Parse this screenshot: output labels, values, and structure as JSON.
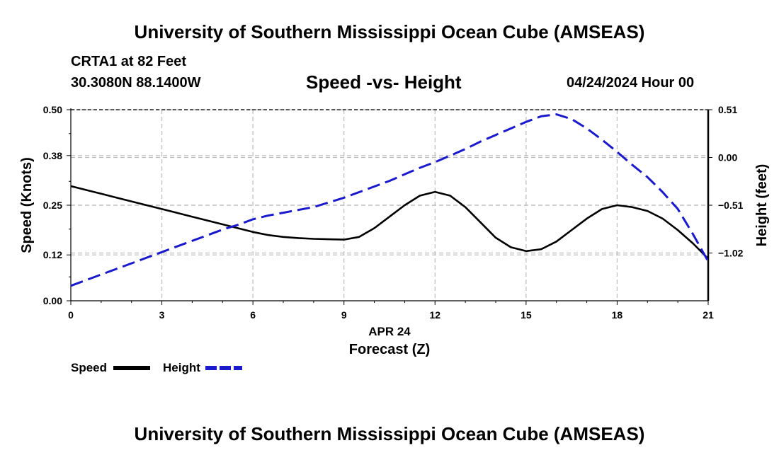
{
  "header": {
    "title": "University of Southern Mississippi Ocean Cube (AMSEAS)",
    "station": "CRTA1 at 82 Feet",
    "coords": "30.3080N  88.1400W",
    "subtitle": "Speed -vs- Height",
    "datetime": "04/24/2024 Hour 00"
  },
  "footer": {
    "title": "University of Southern Mississippi Ocean Cube (AMSEAS)"
  },
  "colors": {
    "speed": "#000000",
    "height": "#1a1acc",
    "grid": "#bbbbbb"
  },
  "chart_data": {
    "type": "line",
    "x": [
      0,
      0.5,
      1,
      1.5,
      2,
      2.5,
      3,
      3.5,
      4,
      4.5,
      5,
      5.5,
      6,
      6.5,
      7,
      7.5,
      8,
      8.5,
      9,
      9.5,
      10,
      10.5,
      11,
      11.5,
      12,
      12.5,
      13,
      13.5,
      14,
      14.5,
      15,
      15.5,
      16,
      16.5,
      17,
      17.5,
      18,
      18.5,
      19,
      19.5,
      20,
      20.5,
      21
    ],
    "series": [
      {
        "name": "Speed",
        "axis": "left",
        "style": "solid",
        "values": [
          0.3,
          0.29,
          0.28,
          0.27,
          0.26,
          0.25,
          0.24,
          0.23,
          0.22,
          0.21,
          0.2,
          0.19,
          0.18,
          0.172,
          0.167,
          0.164,
          0.162,
          0.161,
          0.16,
          0.167,
          0.19,
          0.22,
          0.25,
          0.275,
          0.285,
          0.275,
          0.245,
          0.205,
          0.165,
          0.14,
          0.13,
          0.135,
          0.155,
          0.185,
          0.215,
          0.24,
          0.25,
          0.245,
          0.235,
          0.215,
          0.185,
          0.15,
          0.11
        ]
      },
      {
        "name": "Height",
        "axis": "right",
        "style": "dashed",
        "values": [
          -1.37,
          -1.31,
          -1.25,
          -1.19,
          -1.13,
          -1.07,
          -1.01,
          -0.95,
          -0.89,
          -0.83,
          -0.77,
          -0.72,
          -0.66,
          -0.62,
          -0.59,
          -0.56,
          -0.53,
          -0.48,
          -0.43,
          -0.37,
          -0.31,
          -0.25,
          -0.18,
          -0.11,
          -0.05,
          0.02,
          0.09,
          0.17,
          0.24,
          0.31,
          0.38,
          0.44,
          0.46,
          0.41,
          0.31,
          0.19,
          0.06,
          -0.08,
          -0.21,
          -0.37,
          -0.55,
          -0.82,
          -1.11
        ]
      }
    ],
    "xlabel_top": "APR 24",
    "xlabel": "Forecast (Z)",
    "ylabel": "Speed (Knots)",
    "ylabel_right": "Height (feet)",
    "xlim": [
      0,
      21
    ],
    "ylim": [
      0,
      0.5
    ],
    "ylim_right": [
      -1.53,
      0.51
    ],
    "x_ticks": [
      "0",
      "3",
      "6",
      "9",
      "12",
      "15",
      "18",
      "21"
    ],
    "y_ticks": [
      "0.00",
      "0.12",
      "0.25",
      "0.38",
      "0.50"
    ],
    "y_ticks_right": [
      "0.51",
      "0.00",
      "−0.51",
      "−1.02"
    ],
    "y_ticks_right_values": [
      0.51,
      0.0,
      -0.51,
      -1.02
    ],
    "legend": [
      "Speed",
      "Height"
    ],
    "grid": true
  }
}
